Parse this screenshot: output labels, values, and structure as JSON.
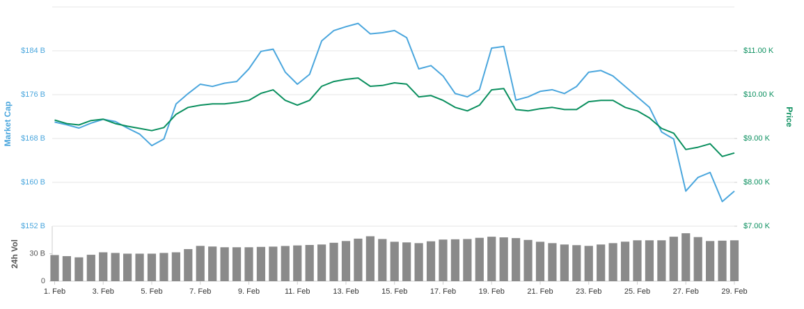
{
  "chart_data": [
    {
      "type": "line",
      "ylabel": "Market Cap",
      "y2label": "Price",
      "grid": true,
      "x": [
        1,
        1.5,
        2,
        2.5,
        3,
        3.5,
        4,
        4.5,
        5,
        5.5,
        6,
        6.5,
        7,
        7.5,
        8,
        8.5,
        9,
        9.5,
        10,
        10.5,
        11,
        11.5,
        12,
        12.5,
        13,
        13.5,
        14,
        14.5,
        15,
        15.5,
        16,
        16.5,
        17,
        17.5,
        18,
        18.5,
        19,
        19.5,
        20,
        20.5,
        21,
        21.5,
        22,
        22.5,
        23,
        23.5,
        24,
        24.5,
        25,
        25.5,
        26,
        26.5,
        27,
        27.5,
        28,
        28.5,
        29
      ],
      "xlim": [
        0.9,
        29
      ],
      "ylim": [
        152,
        192
      ],
      "yticks": [
        {
          "value": 152,
          "label": "$152 B"
        },
        {
          "value": 160,
          "label": "$160 B"
        },
        {
          "value": 168,
          "label": "$168 B"
        },
        {
          "value": 176,
          "label": "$176 B"
        },
        {
          "value": 184,
          "label": "$184 B"
        }
      ],
      "y2lim": [
        7,
        12
      ],
      "y2ticks": [
        {
          "value": 7,
          "label": "$7.00 K"
        },
        {
          "value": 8,
          "label": "$8.00 K"
        },
        {
          "value": 9,
          "label": "$9.00 K"
        },
        {
          "value": 10,
          "label": "$10.00 K"
        },
        {
          "value": 11,
          "label": "$11.00 K"
        }
      ],
      "series": [
        {
          "color": "#4aa6dd",
          "axis": "y",
          "values": [
            171.0,
            170.5,
            169.9,
            170.8,
            171.5,
            171.1,
            169.9,
            168.8,
            166.7,
            167.9,
            174.3,
            176.2,
            177.9,
            177.5,
            178.1,
            178.4,
            180.7,
            183.9,
            184.3,
            180.1,
            177.9,
            179.7,
            185.8,
            187.7,
            188.4,
            189.0,
            187.1,
            187.3,
            187.7,
            186.4,
            180.7,
            181.3,
            179.4,
            176.2,
            175.6,
            176.9,
            184.5,
            184.8,
            175.0,
            175.6,
            176.6,
            176.9,
            176.2,
            177.5,
            180.1,
            180.4,
            179.4,
            177.5,
            175.6,
            173.7,
            169.2,
            167.9,
            158.4,
            160.9,
            161.8,
            156.5,
            158.4
          ]
        },
        {
          "color": "#0a8f5e",
          "axis": "y2",
          "values": [
            9.42,
            9.34,
            9.31,
            9.41,
            9.44,
            9.34,
            9.28,
            9.23,
            9.18,
            9.25,
            9.55,
            9.71,
            9.76,
            9.79,
            9.79,
            9.82,
            9.87,
            10.03,
            10.11,
            9.87,
            9.76,
            9.87,
            10.19,
            10.3,
            10.35,
            10.38,
            10.19,
            10.21,
            10.27,
            10.24,
            9.95,
            9.98,
            9.87,
            9.71,
            9.63,
            9.76,
            10.11,
            10.14,
            9.66,
            9.63,
            9.68,
            9.71,
            9.66,
            9.66,
            9.84,
            9.87,
            9.87,
            9.71,
            9.63,
            9.47,
            9.23,
            9.12,
            8.75,
            8.8,
            8.88,
            8.59,
            8.67
          ]
        }
      ]
    },
    {
      "type": "bar",
      "ylabel": "24h Vol",
      "color": "#8a8a8a",
      "x": [
        1,
        1.5,
        2,
        2.5,
        3,
        3.5,
        4,
        4.5,
        5,
        5.5,
        6,
        6.5,
        7,
        7.5,
        8,
        8.5,
        9,
        9.5,
        10,
        10.5,
        11,
        11.5,
        12,
        12.5,
        13,
        13.5,
        14,
        14.5,
        15,
        15.5,
        16,
        16.5,
        17,
        17.5,
        18,
        18.5,
        19,
        19.5,
        20,
        20.5,
        21,
        21.5,
        22,
        22.5,
        23,
        23.5,
        24,
        24.5,
        25,
        25.5,
        26,
        26.5,
        27,
        27.5,
        28,
        28.5,
        29
      ],
      "values": [
        28.5,
        27.3,
        26,
        28.8,
        31.5,
        30.8,
        30,
        30,
        30,
        30.8,
        31.5,
        35,
        38.5,
        37.8,
        37,
        37,
        37,
        37.4,
        37.7,
        38.4,
        39,
        39.5,
        40,
        41.9,
        43.8,
        46.4,
        49,
        46,
        43,
        42.3,
        41.5,
        43.5,
        45.4,
        45.7,
        46,
        47.3,
        48.5,
        47.8,
        47,
        45,
        43,
        41.5,
        40,
        39.3,
        38.5,
        40,
        41.5,
        43.1,
        44.6,
        44.6,
        44.6,
        48.5,
        52.3,
        48.1,
        43.8,
        44.2,
        44.6
      ],
      "xlim": [
        0.9,
        29
      ],
      "xticks": [
        {
          "value": 1,
          "label": "1. Feb"
        },
        {
          "value": 3,
          "label": "3. Feb"
        },
        {
          "value": 5,
          "label": "5. Feb"
        },
        {
          "value": 7,
          "label": "7. Feb"
        },
        {
          "value": 9,
          "label": "9. Feb"
        },
        {
          "value": 11,
          "label": "11. Feb"
        },
        {
          "value": 13,
          "label": "13. Feb"
        },
        {
          "value": 15,
          "label": "15. Feb"
        },
        {
          "value": 17,
          "label": "17. Feb"
        },
        {
          "value": 19,
          "label": "19. Feb"
        },
        {
          "value": 21,
          "label": "21. Feb"
        },
        {
          "value": 23,
          "label": "23. Feb"
        },
        {
          "value": 25,
          "label": "25. Feb"
        },
        {
          "value": 27,
          "label": "27. Feb"
        },
        {
          "value": 29,
          "label": "29. Feb"
        }
      ],
      "ylim": [
        0,
        60
      ],
      "yticks": [
        0,
        {
          "value": 30,
          "label": "30 B"
        }
      ]
    }
  ]
}
